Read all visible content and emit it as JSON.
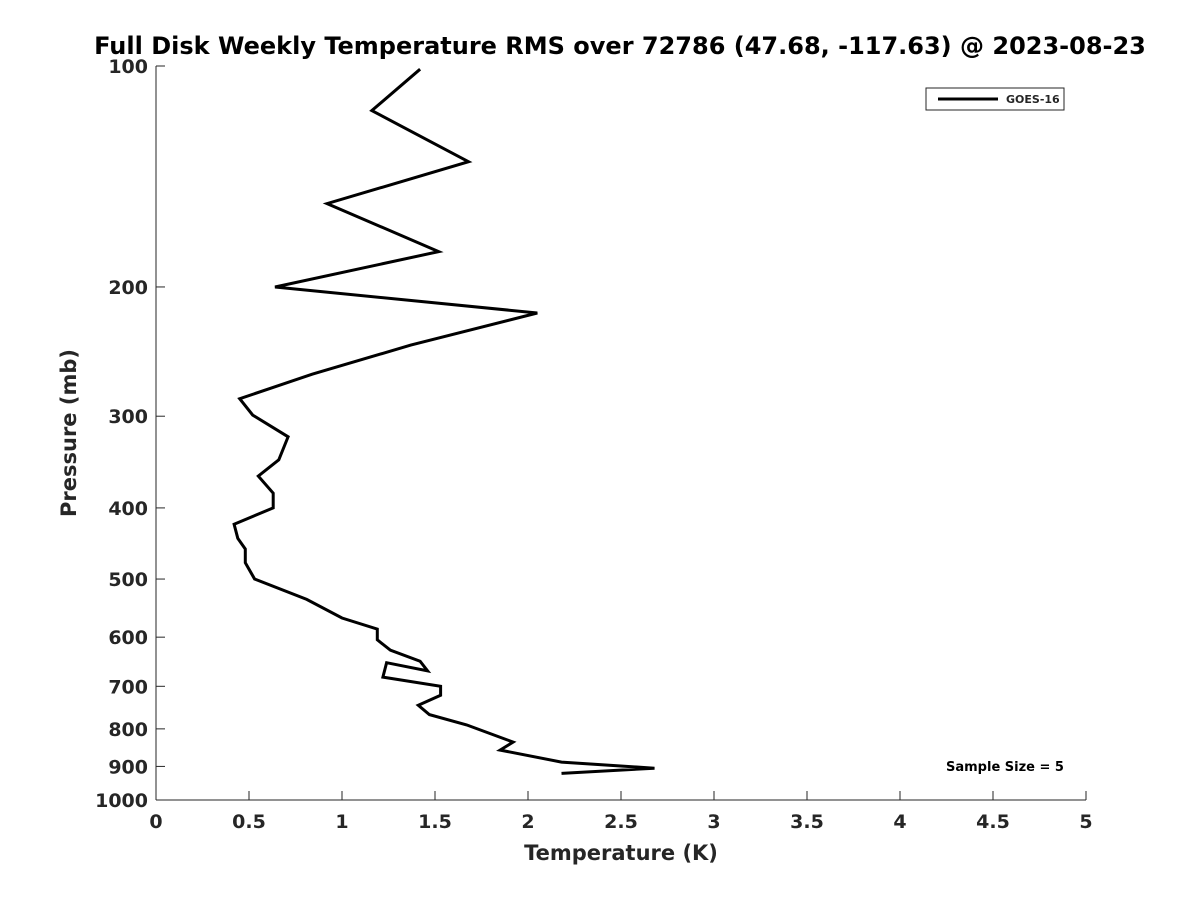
{
  "chart_data": {
    "type": "line",
    "title": "Full Disk Weekly Temperature RMS over 72786 (47.68, -117.63) @ 2023-08-23",
    "xlabel": "Temperature (K)",
    "ylabel": "Pressure (mb)",
    "xlim": [
      0,
      5
    ],
    "ylim": [
      100,
      1000
    ],
    "yscale": "log",
    "yreversed": true,
    "xticks": [
      0,
      0.5,
      1,
      1.5,
      2,
      2.5,
      3,
      3.5,
      4,
      4.5,
      5
    ],
    "xtick_labels": [
      "0",
      "0.5",
      "1",
      "1.5",
      "2",
      "2.5",
      "3",
      "3.5",
      "4",
      "4.5",
      "5"
    ],
    "yticks": [
      100,
      200,
      300,
      400,
      500,
      600,
      700,
      800,
      900,
      1000
    ],
    "ytick_labels": [
      "100",
      "200",
      "300",
      "400",
      "500",
      "600",
      "700",
      "800",
      "900",
      "1000"
    ],
    "grid": false,
    "legend_position": "top-right",
    "annotation": "Sample Size = 5",
    "series": [
      {
        "name": "GOES-16",
        "color": "#000000",
        "x": [
          1.42,
          1.16,
          1.68,
          0.92,
          1.52,
          0.64,
          2.05,
          1.37,
          0.84,
          0.45,
          0.52,
          0.71,
          0.66,
          0.55,
          0.63,
          0.63,
          0.42,
          0.44,
          0.48,
          0.48,
          0.53,
          0.81,
          1.0,
          1.19,
          1.19,
          1.26,
          1.42,
          1.46,
          1.24,
          1.22,
          1.53,
          1.53,
          1.41,
          1.47,
          1.67,
          1.92,
          1.85,
          2.18,
          2.68,
          2.18
        ],
        "y": [
          101,
          115,
          135,
          154,
          179,
          200,
          217,
          240,
          263,
          284,
          299,
          320,
          344,
          362,
          382,
          400,
          421,
          440,
          455,
          475,
          500,
          533,
          565,
          585,
          605,
          625,
          647,
          667,
          650,
          680,
          700,
          720,
          743,
          765,
          790,
          834,
          855,
          888,
          905,
          920
        ]
      }
    ]
  }
}
